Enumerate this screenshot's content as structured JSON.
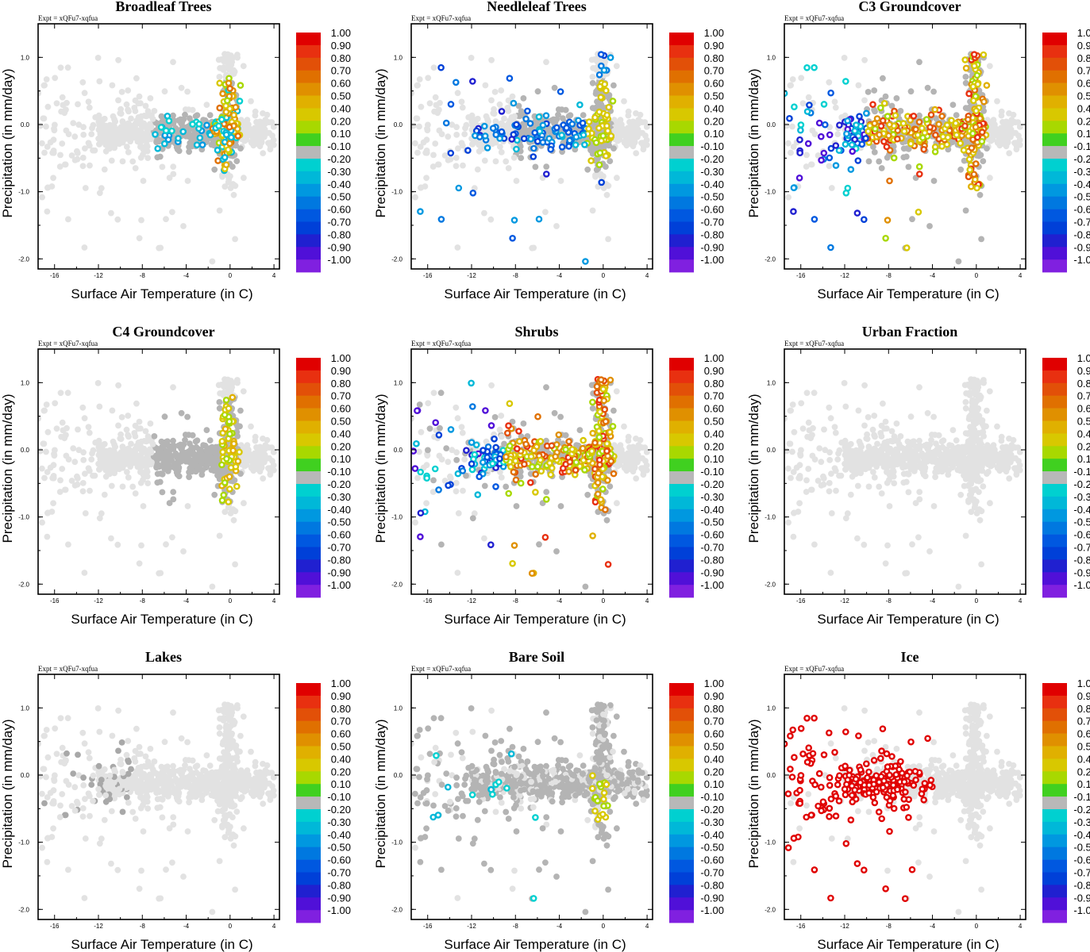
{
  "figure": {
    "experiment_label": "Expt = xQFu7-xqfua",
    "colorbar": {
      "labels": [
        "1.00",
        "0.90",
        "0.80",
        "0.70",
        "0.60",
        "0.50",
        "0.40",
        "0.20",
        "0.10",
        "-0.10",
        "-0.20",
        "-0.30",
        "-0.40",
        "-0.50",
        "-0.60",
        "-0.70",
        "-0.80",
        "-0.90",
        "-1.00"
      ],
      "colors": [
        "#e00000",
        "#e83010",
        "#e25008",
        "#e07000",
        "#e09000",
        "#e0b000",
        "#d8c800",
        "#a8d800",
        "#40d020",
        "#b8b8b8",
        "#00d0d0",
        "#00b8d8",
        "#0098e0",
        "#0078e0",
        "#0058e0",
        "#0040d8",
        "#2020d0",
        "#5010d8",
        "#8020e0"
      ]
    }
  },
  "chart_data": [
    {
      "type": "scatter",
      "title": "Broadleaf Trees",
      "xlabel": "Surface Air Temperature (in C)",
      "ylabel": "Precipitation (in mm/day)",
      "xlim": [
        -17.5,
        4.5
      ],
      "ylim": [
        -2.15,
        1.5
      ],
      "xticks": [
        "-16",
        "-12",
        "-8",
        "-4",
        "0",
        "4"
      ],
      "yticks": [
        "1.0",
        "0.0",
        "-1.0",
        "-2.0"
      ],
      "pattern": "broadleaf"
    },
    {
      "type": "scatter",
      "title": "Needleleaf Trees",
      "xlabel": "Surface Air Temperature (in C)",
      "ylabel": "Precipitation (in mm/day)",
      "xlim": [
        -17.5,
        4.5
      ],
      "ylim": [
        -2.15,
        1.5
      ],
      "xticks": [
        "-16",
        "-12",
        "-8",
        "-4",
        "0",
        "4"
      ],
      "yticks": [
        "1.0",
        "0.0",
        "-1.0",
        "-2.0"
      ],
      "pattern": "needleleaf"
    },
    {
      "type": "scatter",
      "title": "C3 Groundcover",
      "xlabel": "Surface Air Temperature (in C)",
      "ylabel": "Precipitation (in mm/day)",
      "xlim": [
        -17.5,
        4.5
      ],
      "ylim": [
        -2.15,
        1.5
      ],
      "xticks": [
        "-16",
        "-12",
        "-8",
        "-4",
        "0",
        "4"
      ],
      "yticks": [
        "1.0",
        "0.0",
        "-1.0",
        "-2.0"
      ],
      "pattern": "c3"
    },
    {
      "type": "scatter",
      "title": "C4 Groundcover",
      "xlabel": "Surface Air Temperature (in C)",
      "ylabel": "Precipitation (in mm/day)",
      "xlim": [
        -17.5,
        4.5
      ],
      "ylim": [
        -2.15,
        1.5
      ],
      "xticks": [
        "-16",
        "-12",
        "-8",
        "-4",
        "0",
        "4"
      ],
      "yticks": [
        "1.0",
        "0.0",
        "-1.0",
        "-2.0"
      ],
      "pattern": "c4"
    },
    {
      "type": "scatter",
      "title": "Shrubs",
      "xlabel": "Surface Air Temperature (in C)",
      "ylabel": "Precipitation (in mm/day)",
      "xlim": [
        -17.5,
        4.5
      ],
      "ylim": [
        -2.15,
        1.5
      ],
      "xticks": [
        "-16",
        "-12",
        "-8",
        "-4",
        "0",
        "4"
      ],
      "yticks": [
        "1.0",
        "0.0",
        "-1.0",
        "-2.0"
      ],
      "pattern": "shrubs"
    },
    {
      "type": "scatter",
      "title": "Urban Fraction",
      "xlabel": "Surface Air Temperature (in C)",
      "ylabel": "Precipitation (in mm/day)",
      "xlim": [
        -17.5,
        4.5
      ],
      "ylim": [
        -2.15,
        1.5
      ],
      "xticks": [
        "-16",
        "-12",
        "-8",
        "-4",
        "0",
        "4"
      ],
      "yticks": [
        "1.0",
        "0.0",
        "-1.0",
        "-2.0"
      ],
      "pattern": "urban"
    },
    {
      "type": "scatter",
      "title": "Lakes",
      "xlabel": "Surface Air Temperature (in C)",
      "ylabel": "Precipitation (in mm/day)",
      "xlim": [
        -17.5,
        4.5
      ],
      "ylim": [
        -2.15,
        1.5
      ],
      "xticks": [
        "-16",
        "-12",
        "-8",
        "-4",
        "0",
        "4"
      ],
      "yticks": [
        "1.0",
        "0.0",
        "-1.0",
        "-2.0"
      ],
      "pattern": "lakes"
    },
    {
      "type": "scatter",
      "title": "Bare Soil",
      "xlabel": "Surface Air Temperature (in C)",
      "ylabel": "Precipitation (in mm/day)",
      "xlim": [
        -17.5,
        4.5
      ],
      "ylim": [
        -2.15,
        1.5
      ],
      "xticks": [
        "-16",
        "-12",
        "-8",
        "-4",
        "0",
        "4"
      ],
      "yticks": [
        "1.0",
        "0.0",
        "-1.0",
        "-2.0"
      ],
      "pattern": "baresoil"
    },
    {
      "type": "scatter",
      "title": "Ice",
      "xlabel": "Surface Air Temperature (in C)",
      "ylabel": "Precipitation (in mm/day)",
      "xlim": [
        -17.5,
        4.5
      ],
      "ylim": [
        -2.15,
        1.5
      ],
      "xticks": [
        "-16",
        "-12",
        "-8",
        "-4",
        "0",
        "4"
      ],
      "yticks": [
        "1.0",
        "0.0",
        "-1.0",
        "-2.0"
      ],
      "pattern": "ice"
    }
  ]
}
